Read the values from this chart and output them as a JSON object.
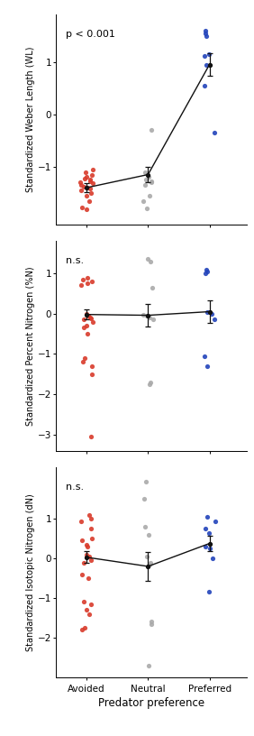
{
  "panel1": {
    "title": "p < 0.001",
    "ylabel": "Standardized Weber Length (WL)",
    "avoided_points": [
      -1.65,
      -1.55,
      -1.5,
      -1.45,
      -1.42,
      -1.4,
      -1.38,
      -1.35,
      -1.32,
      -1.3,
      -1.28,
      -1.25,
      -1.22,
      -1.2,
      -1.15,
      -1.1,
      -1.05,
      -1.82,
      -1.78
    ],
    "neutral_points": [
      -0.3,
      -1.1,
      -1.2,
      -1.25,
      -1.28,
      -1.3,
      -1.35,
      -1.55,
      -1.65,
      -1.8
    ],
    "preferred_points": [
      1.6,
      1.55,
      1.5,
      1.15,
      1.12,
      0.95,
      0.55,
      -0.35
    ],
    "avoided_mean": -1.4,
    "neutral_mean": -1.15,
    "preferred_mean": 0.95,
    "avoided_se": 0.08,
    "neutral_se": 0.14,
    "preferred_se": 0.22,
    "ylim": [
      -2.1,
      1.9
    ],
    "yticks": [
      -1,
      0,
      1
    ]
  },
  "panel2": {
    "title": "n.s.",
    "ylabel": "Standardized Percent Nitrogen (%N)",
    "avoided_points": [
      0.9,
      0.85,
      0.8,
      0.75,
      0.7,
      0.0,
      -0.05,
      -0.1,
      -0.12,
      -0.15,
      -0.2,
      -0.3,
      -0.35,
      -0.5,
      -1.1,
      -1.2,
      -1.3,
      -1.5,
      -3.05
    ],
    "neutral_points": [
      1.35,
      1.3,
      0.65,
      -0.02,
      -0.05,
      -0.1,
      -0.15,
      -1.7,
      -1.75
    ],
    "preferred_points": [
      1.1,
      1.05,
      1.0,
      0.05,
      0.0,
      -0.15,
      -1.05,
      -1.3
    ],
    "avoided_mean": -0.02,
    "neutral_mean": -0.04,
    "preferred_mean": 0.05,
    "avoided_se": 0.13,
    "neutral_se": 0.28,
    "preferred_se": 0.29,
    "ylim": [
      -3.4,
      1.8
    ],
    "yticks": [
      -3,
      -2,
      -1,
      0,
      1
    ]
  },
  "panel3": {
    "title": "n.s.",
    "ylabel": "Standardized Isotopic Nitrogen (dN)",
    "avoided_points": [
      0.95,
      1.0,
      1.1,
      0.75,
      0.5,
      0.45,
      0.35,
      0.3,
      0.1,
      0.05,
      -0.05,
      -0.1,
      -0.4,
      -0.5,
      -1.1,
      -1.15,
      -1.3,
      -1.4,
      -1.75,
      -1.8
    ],
    "neutral_points": [
      1.95,
      1.5,
      0.8,
      0.6,
      0.05,
      -0.1,
      -0.15,
      -1.6,
      -1.65,
      -2.7
    ],
    "preferred_points": [
      1.05,
      0.95,
      0.75,
      0.65,
      0.3,
      0.25,
      0.0,
      -0.85
    ],
    "avoided_mean": 0.03,
    "neutral_mean": -0.2,
    "preferred_mean": 0.38,
    "avoided_se": 0.15,
    "neutral_se": 0.37,
    "preferred_se": 0.2,
    "ylim": [
      -3.0,
      2.3
    ],
    "yticks": [
      -2,
      -1,
      0,
      1
    ]
  },
  "colors": {
    "avoided": "#d93b2b",
    "neutral": "#aaaaaa",
    "preferred": "#2244bb",
    "mean_line": "#111111"
  },
  "xlabel": "Predator preference",
  "xtick_labels": [
    "Avoided",
    "Neutral",
    "Preferred"
  ],
  "point_size": 14,
  "alpha": 0.9,
  "bg_color": "#ffffff"
}
